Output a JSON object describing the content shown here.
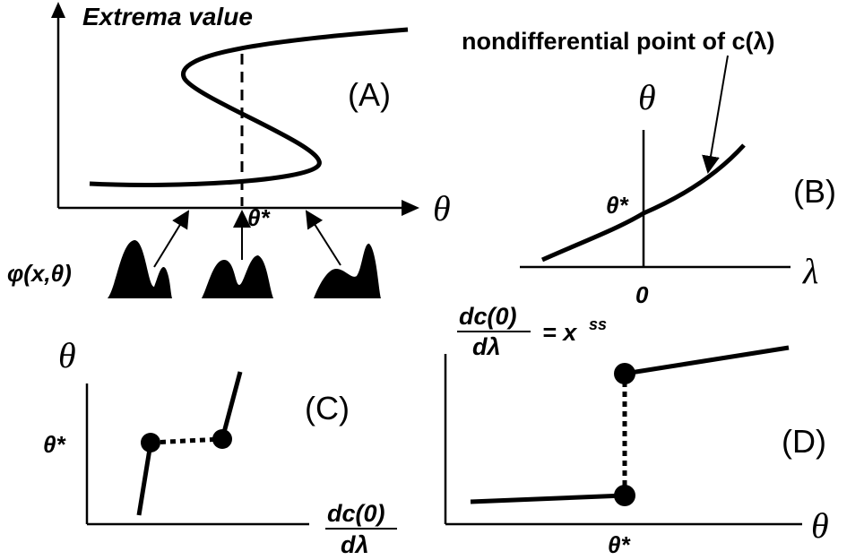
{
  "panels": {
    "A": {
      "label": "(A)",
      "y_axis": "Extrema value",
      "x_axis": "θ",
      "marker": "θ*",
      "function": "φ(x,θ)"
    },
    "B": {
      "label": "(B)",
      "annotation": "nondifferential point of c(λ)",
      "y_axis": "θ",
      "marker": "θ*",
      "x_axis": "λ",
      "origin": "0"
    },
    "C": {
      "label": "(C)",
      "y_axis": "θ",
      "marker": "θ*",
      "x_axis_numerator": "dc(0)",
      "x_axis_denominator": "dλ"
    },
    "D": {
      "label": "(D)",
      "y_axis_numerator": "dc(0)",
      "y_axis_denominator": "dλ",
      "y_axis_equals": "= x",
      "y_axis_superscript": "ss",
      "x_axis": "θ",
      "marker": "θ*"
    }
  }
}
